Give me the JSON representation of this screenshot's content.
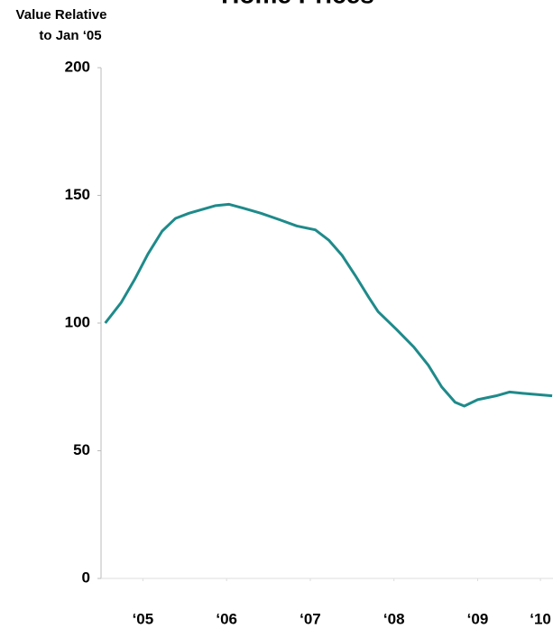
{
  "chart_data": {
    "type": "line",
    "title": "Home Prices",
    "ylabel": [
      "Value Relative",
      "to Jan ‘05"
    ],
    "x": [
      2005.05,
      2005.24,
      2005.4,
      2005.56,
      2005.73,
      2005.89,
      2006.05,
      2006.21,
      2006.37,
      2006.53,
      2006.7,
      2006.91,
      2007.13,
      2007.34,
      2007.56,
      2007.72,
      2007.88,
      2008.04,
      2008.2,
      2008.31,
      2008.53,
      2008.74,
      2008.91,
      2009.07,
      2009.23,
      2009.34,
      2009.5,
      2009.72,
      2009.88,
      2010.04,
      2010.39
    ],
    "series": [
      {
        "color": "#1f8a8a",
        "values": [
          100,
          108,
          117,
          127,
          136,
          141,
          143,
          144.5,
          146,
          146.5,
          145,
          143,
          140.5,
          138,
          136.5,
          132.5,
          126.5,
          118.5,
          110,
          104.5,
          97.5,
          90.5,
          83.5,
          75,
          69,
          67.5,
          70,
          71.5,
          73,
          72.5,
          71.5
        ]
      }
    ],
    "xlim": [
      2005,
      2010.4
    ],
    "xticks": [
      {
        "value": 2005.5,
        "label": "‘05"
      },
      {
        "value": 2006.5,
        "label": "‘06"
      },
      {
        "value": 2007.5,
        "label": "‘07"
      },
      {
        "value": 2008.5,
        "label": "‘08"
      },
      {
        "value": 2009.5,
        "label": "‘09"
      },
      {
        "value": 2010.25,
        "label": "‘10"
      }
    ],
    "ylim": [
      0,
      200
    ],
    "yticks": [
      0,
      50,
      100,
      150,
      200
    ],
    "grid": false
  }
}
